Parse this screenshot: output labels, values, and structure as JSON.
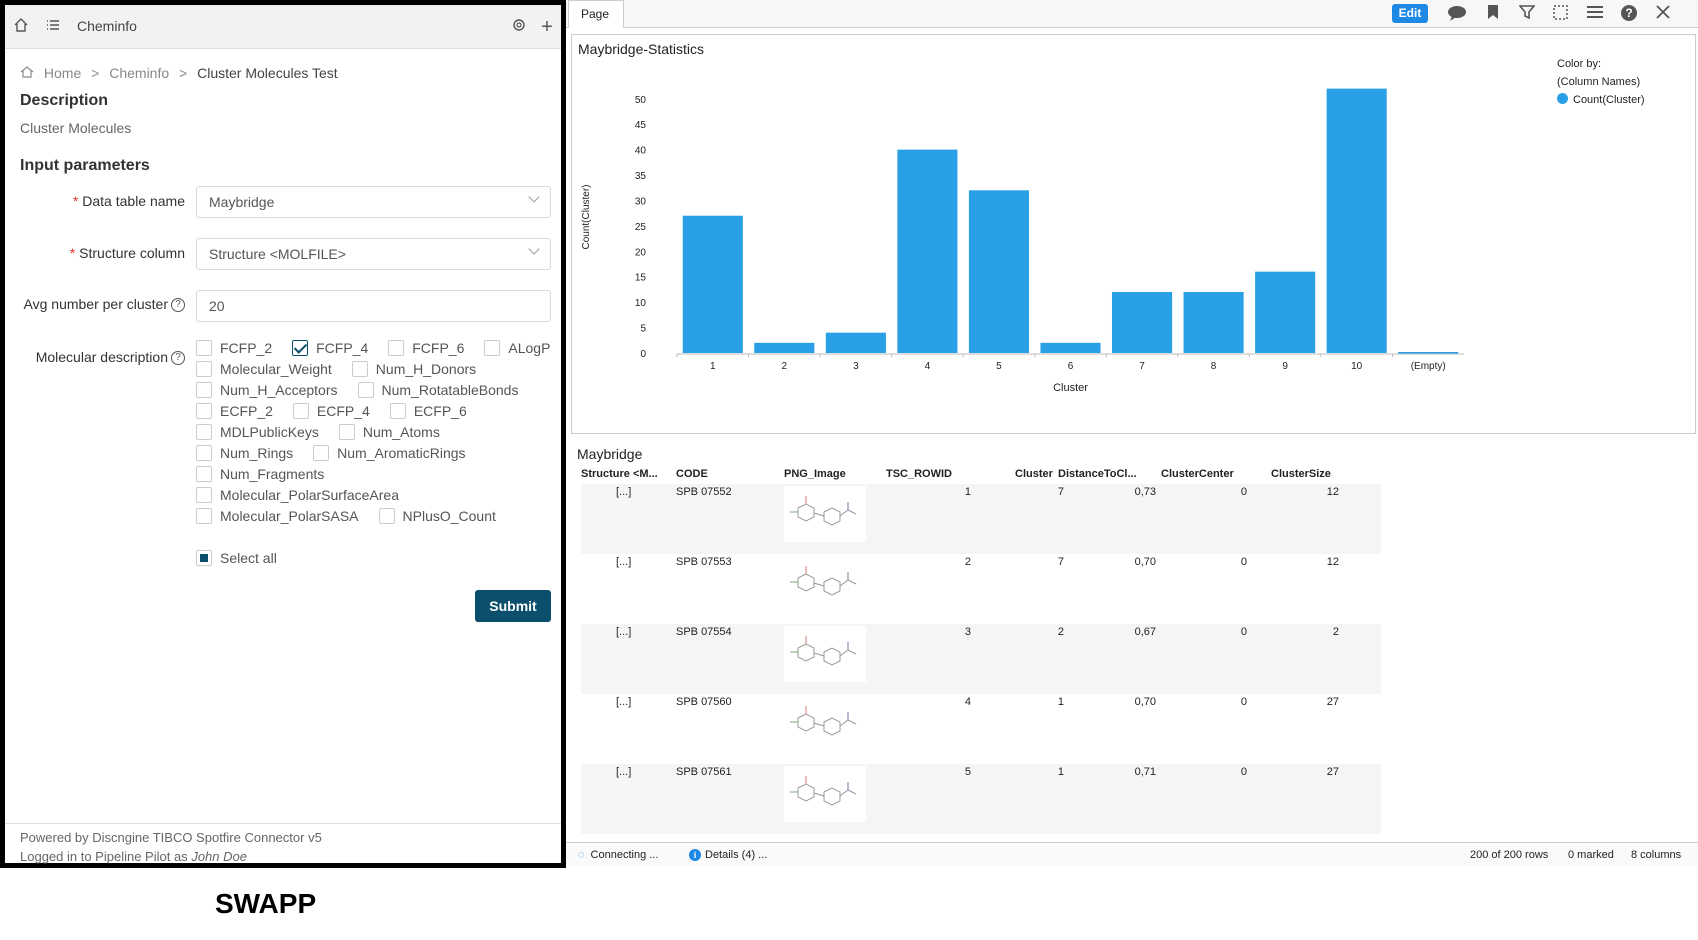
{
  "left": {
    "topbar": {
      "title": "Cheminfo"
    },
    "breadcrumb": {
      "home": "Home",
      "sep": ">",
      "section": "Cheminfo",
      "current": "Cluster Molecules Test"
    },
    "description_heading": "Description",
    "description_value": "Cluster Molecules",
    "input_heading": "Input parameters",
    "required_mark": "*",
    "help_glyph": "?",
    "fields": {
      "data_table": {
        "label": "Data table name",
        "value": "Maybridge"
      },
      "structure": {
        "label": "Structure column",
        "value": "Structure <MOLFILE>"
      },
      "avg": {
        "label": "Avg number per cluster",
        "value": "20"
      },
      "moldesc": {
        "label": "Molecular description"
      }
    },
    "descriptors": [
      [
        {
          "label": "FCFP_2",
          "checked": false
        },
        {
          "label": "FCFP_4",
          "checked": true
        },
        {
          "label": "FCFP_6",
          "checked": false
        },
        {
          "label": "ALogP",
          "checked": false
        }
      ],
      [
        {
          "label": "Molecular_Weight",
          "checked": false
        },
        {
          "label": "Num_H_Donors",
          "checked": false
        }
      ],
      [
        {
          "label": "Num_H_Acceptors",
          "checked": false
        },
        {
          "label": "Num_RotatableBonds",
          "checked": false
        }
      ],
      [
        {
          "label": "ECFP_2",
          "checked": false
        },
        {
          "label": "ECFP_4",
          "checked": false
        },
        {
          "label": "ECFP_6",
          "checked": false
        }
      ],
      [
        {
          "label": "MDLPublicKeys",
          "checked": false
        },
        {
          "label": "Num_Atoms",
          "checked": false
        }
      ],
      [
        {
          "label": "Num_Rings",
          "checked": false
        },
        {
          "label": "Num_AromaticRings",
          "checked": false
        }
      ],
      [
        {
          "label": "Num_Fragments",
          "checked": false
        }
      ],
      [
        {
          "label": "Molecular_PolarSurfaceArea",
          "checked": false
        }
      ],
      [
        {
          "label": "Molecular_PolarSASA",
          "checked": false
        },
        {
          "label": "NPlusO_Count",
          "checked": false
        }
      ]
    ],
    "select_all": "Select all",
    "submit": "Submit",
    "footer": {
      "powered": "Powered by Discngine TIBCO Spotfire Connector v5",
      "logged_prefix": "Logged in to Pipeline Pilot as",
      "user": "John Doe"
    }
  },
  "brand": "SWAPP",
  "right": {
    "tab": "Page",
    "edit": "Edit",
    "toolbar_icons": [
      "chat-icon",
      "bookmark-icon",
      "filter-icon",
      "marking-icon",
      "menu-icon",
      "help-icon",
      "close-icon"
    ],
    "table_title": "Maybridge",
    "columns": [
      "Structure <M...",
      "CODE",
      "PNG_Image",
      "TSC_ROWID",
      "Cluster",
      "DistanceToCl...",
      "ClusterCenter",
      "ClusterSize"
    ],
    "rows": [
      {
        "structure": "[...]",
        "code": "SPB 07552",
        "rowid": "1",
        "cluster": "7",
        "dist": "0,73",
        "center": "0",
        "size": "12"
      },
      {
        "structure": "[...]",
        "code": "SPB 07553",
        "rowid": "2",
        "cluster": "7",
        "dist": "0,70",
        "center": "0",
        "size": "12"
      },
      {
        "structure": "[...]",
        "code": "SPB 07554",
        "rowid": "3",
        "cluster": "2",
        "dist": "0,67",
        "center": "0",
        "size": "2"
      },
      {
        "structure": "[...]",
        "code": "SPB 07560",
        "rowid": "4",
        "cluster": "1",
        "dist": "0,70",
        "center": "0",
        "size": "27"
      },
      {
        "structure": "[...]",
        "code": "SPB 07561",
        "rowid": "5",
        "cluster": "1",
        "dist": "0,71",
        "center": "0",
        "size": "27"
      }
    ],
    "status": {
      "connecting": "Connecting ...",
      "info_glyph": "i",
      "details": "Details (4) ...",
      "rows": "200 of 200 rows",
      "marked": "0 marked",
      "columns": "8 columns"
    }
  },
  "colors": {
    "bar": "#29a0e6",
    "submit": "#0b4f6c",
    "edit": "#1e88e5"
  },
  "chart_data": {
    "type": "bar",
    "title": "Maybridge-Statistics",
    "xlabel": "Cluster",
    "ylabel": "Count(Cluster)",
    "categories": [
      "1",
      "2",
      "3",
      "4",
      "5",
      "6",
      "7",
      "8",
      "9",
      "10",
      "(Empty)"
    ],
    "series": [
      {
        "name": "Count(Cluster)",
        "values": [
          27,
          2,
          4,
          40,
          32,
          2,
          12,
          12,
          16,
          52,
          0
        ]
      }
    ],
    "ylim": [
      0,
      50
    ],
    "yticks": [
      0,
      5,
      10,
      15,
      20,
      25,
      30,
      35,
      40,
      45,
      50
    ],
    "legend_title": "Color by:",
    "legend_subtitle": "(Column Names)",
    "legend_position": "top-right"
  }
}
